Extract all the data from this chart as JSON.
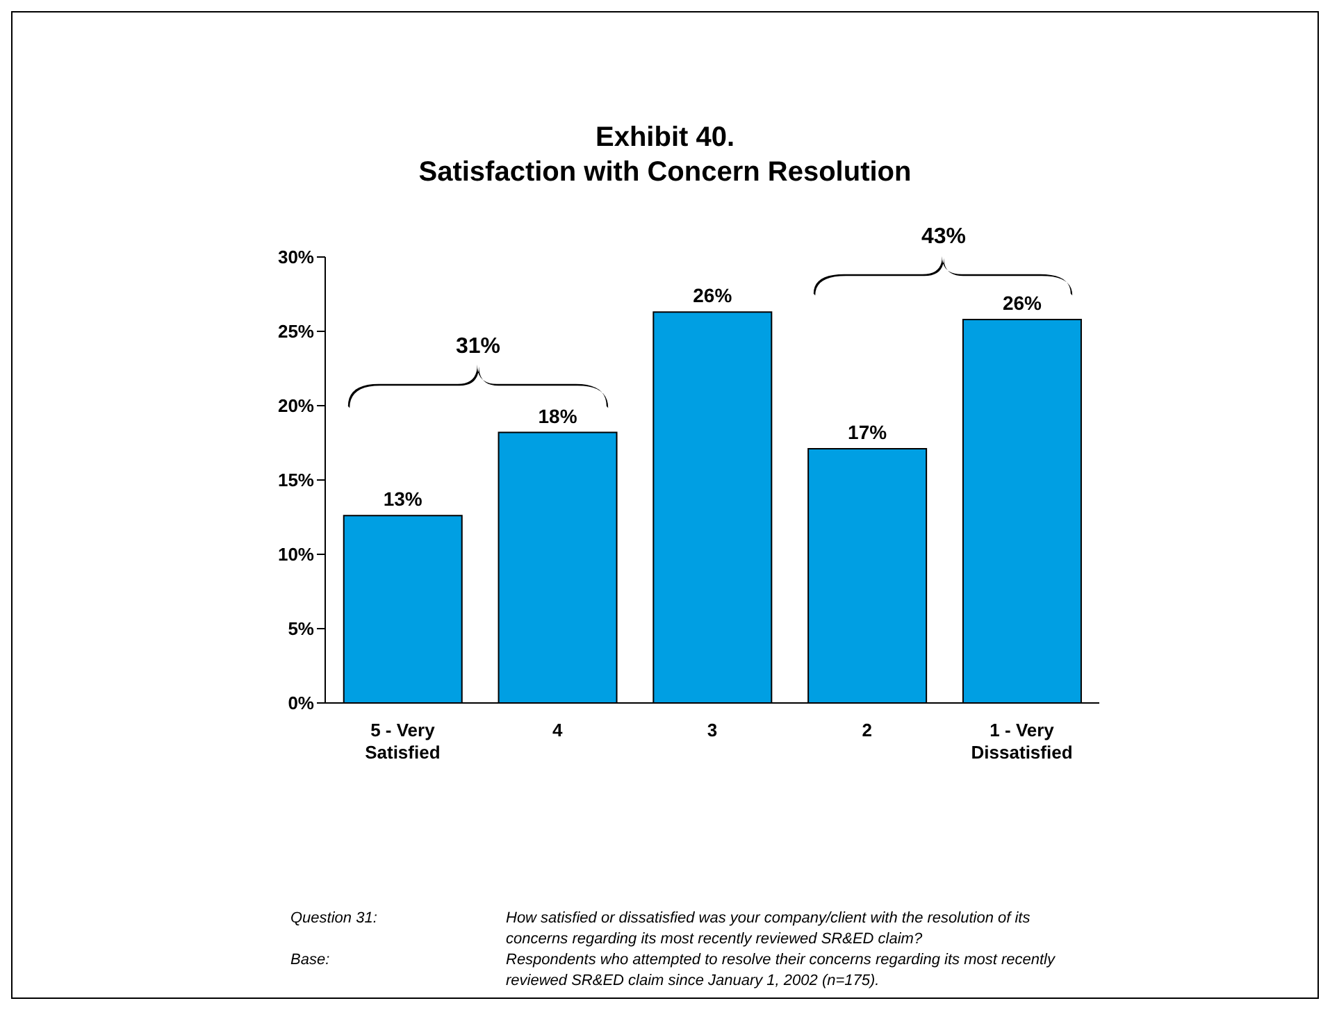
{
  "chart_data": {
    "type": "bar",
    "title": "Exhibit 40.\nSatisfaction with Concern Resolution",
    "categories": [
      "5 - Very Satisfied",
      "4",
      "3",
      "2",
      "1 - Very Dissatisfied"
    ],
    "values": [
      12.6,
      18.2,
      26.3,
      17.1,
      25.8
    ],
    "value_labels": [
      "13%",
      "18%",
      "26%",
      "17%",
      "26%"
    ],
    "color": "#009fe3",
    "ylim": [
      0,
      30
    ],
    "yticks": [
      {
        "value": 0,
        "label": "0%"
      },
      {
        "value": 5,
        "label": "5%"
      },
      {
        "value": 10,
        "label": "10%"
      },
      {
        "value": 15,
        "label": "15%"
      },
      {
        "value": 20,
        "label": "20%"
      },
      {
        "value": 25,
        "label": "25%"
      },
      {
        "value": 30,
        "label": "30%"
      }
    ],
    "grid": false,
    "legend": false,
    "annotations": [
      "31%",
      "43%",
      "Question 31:",
      "How satisfied or dissatisfied was your company/client with the resolution of its concerns regarding its most recently reviewed SR&ED claim?",
      "Base:",
      "Respondents who attempted to resolve their concerns regarding its most recently reviewed SR&ED claim since January 1, 2002 (n=175)."
    ]
  }
}
